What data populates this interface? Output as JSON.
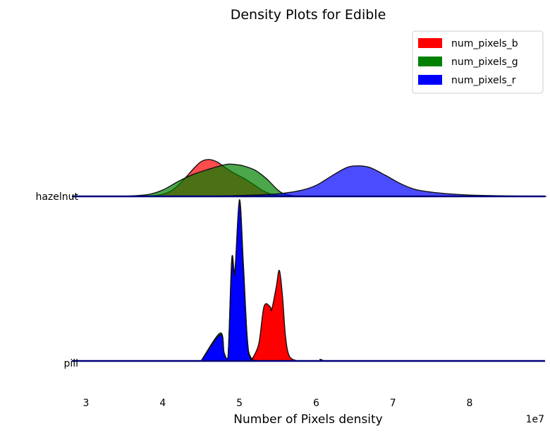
{
  "chart_data": {
    "type": "area",
    "subtype": "ridgeline-density",
    "title": "Density Plots for Edible",
    "xlabel": "Number of Pixels density",
    "x_offset_label": "1e7",
    "xlim": [
      2.85,
      9.0
    ],
    "x_ticks": [
      3,
      4,
      5,
      6,
      7,
      8
    ],
    "x_tick_labels": [
      "3",
      "4",
      "5",
      "6",
      "7",
      "8"
    ],
    "grid": false,
    "legend_position": "top-right",
    "categories": [
      "hazelnut",
      "pill"
    ],
    "series": [
      {
        "name": "num_pixels_b",
        "color": "#ff0000"
      },
      {
        "name": "num_pixels_g",
        "color": "#008000"
      },
      {
        "name": "num_pixels_r",
        "color": "#0000ff"
      }
    ],
    "ridges": [
      {
        "category": "hazelnut",
        "densities": [
          {
            "series": "num_pixels_b",
            "points": [
              [
                3.5,
                0
              ],
              [
                3.9,
                0.02
              ],
              [
                4.1,
                0.12
              ],
              [
                4.25,
                0.35
              ],
              [
                4.4,
                0.65
              ],
              [
                4.5,
                0.82
              ],
              [
                4.6,
                0.87
              ],
              [
                4.7,
                0.82
              ],
              [
                4.8,
                0.7
              ],
              [
                4.9,
                0.58
              ],
              [
                5.0,
                0.48
              ],
              [
                5.1,
                0.38
              ],
              [
                5.2,
                0.26
              ],
              [
                5.3,
                0.14
              ],
              [
                5.4,
                0.06
              ],
              [
                5.5,
                0.02
              ],
              [
                5.6,
                0
              ]
            ]
          },
          {
            "series": "num_pixels_g",
            "points": [
              [
                3.5,
                0
              ],
              [
                3.8,
                0.04
              ],
              [
                4.0,
                0.15
              ],
              [
                4.2,
                0.35
              ],
              [
                4.4,
                0.52
              ],
              [
                4.6,
                0.64
              ],
              [
                4.75,
                0.72
              ],
              [
                4.85,
                0.76
              ],
              [
                4.95,
                0.75
              ],
              [
                5.05,
                0.72
              ],
              [
                5.2,
                0.62
              ],
              [
                5.35,
                0.42
              ],
              [
                5.5,
                0.15
              ],
              [
                5.6,
                0.05
              ],
              [
                5.75,
                0
              ]
            ]
          },
          {
            "series": "num_pixels_r",
            "points": [
              [
                4.5,
                0
              ],
              [
                5.0,
                0.02
              ],
              [
                5.5,
                0.06
              ],
              [
                5.8,
                0.14
              ],
              [
                6.0,
                0.26
              ],
              [
                6.2,
                0.48
              ],
              [
                6.4,
                0.68
              ],
              [
                6.55,
                0.72
              ],
              [
                6.7,
                0.68
              ],
              [
                6.9,
                0.5
              ],
              [
                7.1,
                0.3
              ],
              [
                7.3,
                0.16
              ],
              [
                7.6,
                0.08
              ],
              [
                8.0,
                0.03
              ],
              [
                8.5,
                0.01
              ],
              [
                9.0,
                0
              ]
            ]
          }
        ]
      },
      {
        "category": "pill",
        "densities": [
          {
            "series": "num_pixels_b",
            "points": [
              [
                5.15,
                0
              ],
              [
                5.25,
                0.1
              ],
              [
                5.32,
                0.33
              ],
              [
                5.4,
                0.33
              ],
              [
                5.42,
                0.31
              ],
              [
                5.48,
                0.45
              ],
              [
                5.52,
                0.55
              ],
              [
                5.56,
                0.4
              ],
              [
                5.6,
                0.15
              ],
              [
                5.65,
                0.03
              ],
              [
                5.75,
                0
              ]
            ]
          },
          {
            "series": "num_pixels_g",
            "points": [
              [
                4.5,
                0
              ],
              [
                4.75,
                0.17
              ],
              [
                4.8,
                0.05
              ],
              [
                4.85,
                0.02
              ],
              [
                4.9,
                0.62
              ],
              [
                4.94,
                0.55
              ],
              [
                5.0,
                0.98
              ],
              [
                5.05,
                0.6
              ],
              [
                5.1,
                0.15
              ],
              [
                5.15,
                0.02
              ],
              [
                5.3,
                0
              ],
              [
                6.0,
                0
              ],
              [
                6.05,
                0.01
              ],
              [
                6.1,
                0
              ]
            ]
          },
          {
            "series": "num_pixels_r",
            "points": [
              [
                4.5,
                0
              ],
              [
                4.75,
                0.16
              ],
              [
                4.8,
                0.05
              ],
              [
                4.85,
                0.02
              ],
              [
                4.9,
                0.6
              ],
              [
                4.94,
                0.53
              ],
              [
                5.0,
                0.97
              ],
              [
                5.05,
                0.58
              ],
              [
                5.1,
                0.14
              ],
              [
                5.15,
                0.01
              ],
              [
                5.3,
                0
              ]
            ]
          }
        ]
      }
    ]
  }
}
